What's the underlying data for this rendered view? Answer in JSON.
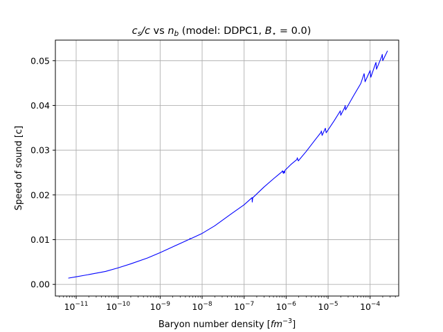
{
  "chart_data": {
    "type": "line",
    "title": "c_s/c vs n_b (model: DDPC1, B_⋆ = 0.0)",
    "title_parts": {
      "cs": "c",
      "cs_sub": "s",
      "slash_c": "/c",
      "vs": " vs ",
      "nb": "n",
      "nb_sub": "b",
      "model": " (model: DDPC1, ",
      "B": "B",
      "B_sub": "⋆",
      "eq": " = 0.0)"
    },
    "xlabel": "Baryon number density",
    "xlabel_unit": {
      "open": "[",
      "fm": "fm",
      "exp": "−3",
      "close": "]"
    },
    "ylabel": "Speed of sound [c]",
    "x_scale": "log",
    "xlim": [
      3.2e-12,
      0.00048
    ],
    "ylim": [
      -0.0026,
      0.0546
    ],
    "grid": true,
    "color": "#0000ff",
    "xticks": [
      {
        "value": 1e-11,
        "base": "10",
        "exp": "−11"
      },
      {
        "value": 1e-10,
        "base": "10",
        "exp": "−10"
      },
      {
        "value": 1e-09,
        "base": "10",
        "exp": "−9"
      },
      {
        "value": 1e-08,
        "base": "10",
        "exp": "−8"
      },
      {
        "value": 1e-07,
        "base": "10",
        "exp": "−7"
      },
      {
        "value": 1e-06,
        "base": "10",
        "exp": "−6"
      },
      {
        "value": 1e-05,
        "base": "10",
        "exp": "−5"
      },
      {
        "value": 0.0001,
        "base": "10",
        "exp": "−4"
      }
    ],
    "yticks": [
      {
        "value": 0.0,
        "label": "0.00"
      },
      {
        "value": 0.01,
        "label": "0.01"
      },
      {
        "value": 0.02,
        "label": "0.02"
      },
      {
        "value": 0.03,
        "label": "0.03"
      },
      {
        "value": 0.04,
        "label": "0.04"
      },
      {
        "value": 0.05,
        "label": "0.05"
      }
    ],
    "series": [
      {
        "x": [
          6.5e-12,
          1e-11,
          2e-11,
          5e-11,
          1e-10,
          2e-10,
          5e-10,
          1e-09,
          2e-09,
          5e-09,
          5.2e-09,
          5.3e-09,
          1e-08,
          2e-08,
          5e-08,
          1e-07,
          1.55e-07,
          1.56e-07,
          1.6e-07,
          1.62e-07,
          3e-07,
          5e-07,
          8e-07,
          8.2e-07,
          8.6e-07,
          8.8e-07,
          9.2e-07,
          9.4e-07,
          1.3e-06,
          1.8e-06,
          1.85e-06,
          1.95e-06,
          3e-06,
          5e-06,
          6.8e-06,
          6.9e-06,
          7.2e-06,
          8.5e-06,
          8.6e-06,
          9e-06,
          1.4e-05,
          1.9e-05,
          1.95e-05,
          2e-05,
          2.5e-05,
          2.55e-05,
          2.6e-05,
          4e-05,
          6e-05,
          7.2e-05,
          7.3e-05,
          7.6e-05,
          9.8e-05,
          0.0001,
          0.000104,
          0.000135,
          0.000138,
          0.000142,
          0.00019,
          0.000195,
          0.0002,
          0.00026
        ],
        "y": [
          0.0014,
          0.0017,
          0.0022,
          0.0029,
          0.0037,
          0.0046,
          0.0059,
          0.0071,
          0.0084,
          0.0101,
          0.0103,
          0.0102,
          0.0114,
          0.0131,
          0.0158,
          0.0178,
          0.0194,
          0.0184,
          0.0193,
          0.0194,
          0.0218,
          0.0236,
          0.0252,
          0.0254,
          0.0248,
          0.0253,
          0.0249,
          0.0255,
          0.0268,
          0.0279,
          0.0283,
          0.0276,
          0.0297,
          0.0324,
          0.034,
          0.0343,
          0.0333,
          0.0348,
          0.0349,
          0.0339,
          0.0366,
          0.0386,
          0.0388,
          0.0378,
          0.0396,
          0.04,
          0.039,
          0.0421,
          0.0449,
          0.0471,
          0.0467,
          0.0453,
          0.0476,
          0.0478,
          0.0463,
          0.0494,
          0.0496,
          0.0481,
          0.051,
          0.0514,
          0.05,
          0.0522
        ]
      }
    ]
  }
}
